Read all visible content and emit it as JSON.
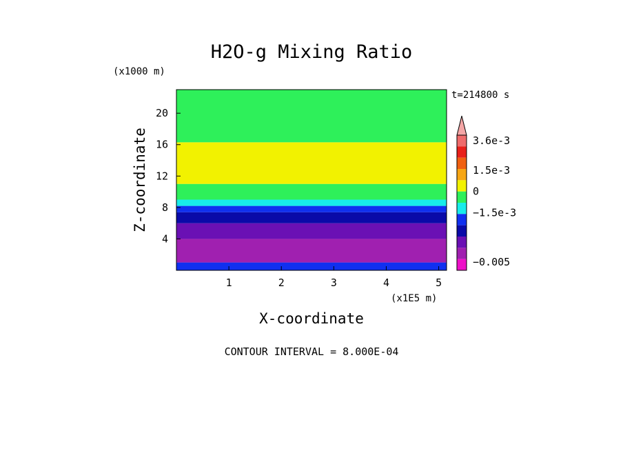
{
  "chart_data": {
    "type": "heatmap",
    "title": "H2O-g Mixing Ratio",
    "xlabel": "X-coordinate",
    "ylabel": "Z-coordinate",
    "x_unit": "(x1E5 m)",
    "y_unit": "(x1000 m)",
    "time_label": "t=214800 s",
    "contour_interval_label": "CONTOUR INTERVAL = 8.000E-04",
    "xlim": [
      0,
      5.15
    ],
    "ylim": [
      0,
      23
    ],
    "x_ticks": [
      {
        "value": 1,
        "label": "1"
      },
      {
        "value": 2,
        "label": "2"
      },
      {
        "value": 3,
        "label": "3"
      },
      {
        "value": 4,
        "label": "4"
      },
      {
        "value": 5,
        "label": "5"
      }
    ],
    "y_ticks": [
      {
        "value": 4,
        "label": "4"
      },
      {
        "value": 8,
        "label": "8"
      },
      {
        "value": 12,
        "label": "12"
      },
      {
        "value": 16,
        "label": "16"
      },
      {
        "value": 20,
        "label": "20"
      }
    ],
    "colorbar": {
      "levels": [
        {
          "value": 0.0044,
          "color": "#f4a6a6"
        },
        {
          "value": 0.0036,
          "color": "#ef6b6b"
        },
        {
          "value": 0.0028,
          "color": "#e8201a"
        },
        {
          "value": 0.002,
          "color": "#f06010"
        },
        {
          "value": 0.0012,
          "color": "#f7a614"
        },
        {
          "value": 0.0004,
          "color": "#f2f200"
        },
        {
          "value": -0.0004,
          "color": "#2ef05a"
        },
        {
          "value": -0.0012,
          "color": "#18ecea"
        },
        {
          "value": -0.002,
          "color": "#1030f0"
        },
        {
          "value": -0.0028,
          "color": "#0a0aa8"
        },
        {
          "value": -0.0036,
          "color": "#6a10b4"
        },
        {
          "value": -0.0044,
          "color": "#a020b0"
        },
        {
          "value": -0.0052,
          "color": "#ee10c8"
        }
      ],
      "labels": [
        {
          "text": "3.6e-3",
          "value": 0.0036
        },
        {
          "text": "1.5e-3",
          "value": 0.0015
        },
        {
          "text": "0",
          "value": 0.0
        },
        {
          "text": "−1.5e-3",
          "value": -0.0015
        },
        {
          "text": "−0.005",
          "value": -0.005
        }
      ]
    },
    "field_bands": [
      {
        "z_from": 0,
        "z_to": 1,
        "color": "#1030f0"
      },
      {
        "z_from": 1,
        "z_to": 4,
        "color": "#a020b0"
      },
      {
        "z_from": 4,
        "z_to": 6,
        "color": "#6a10b4"
      },
      {
        "z_from": 6,
        "z_to": 7.4,
        "color": "#0a0aa8"
      },
      {
        "z_from": 7.4,
        "z_to": 8.2,
        "color": "#1030f0"
      },
      {
        "z_from": 8.2,
        "z_to": 9,
        "color": "#18ecea"
      },
      {
        "z_from": 9,
        "z_to": 11,
        "color": "#2ef05a"
      },
      {
        "z_from": 11,
        "z_to": 16.3,
        "color": "#f2f200"
      },
      {
        "z_from": 16.3,
        "z_to": 23,
        "color": "#2ef05a"
      }
    ]
  }
}
